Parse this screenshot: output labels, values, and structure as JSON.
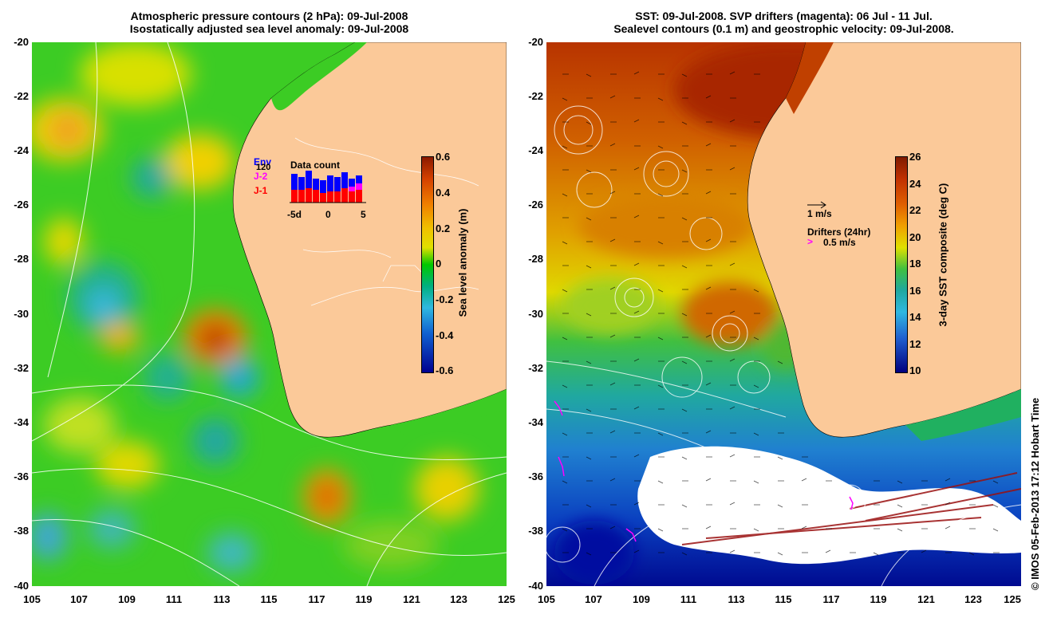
{
  "left": {
    "title_line1": "Atmospheric pressure contours (2 hPa): 09-Jul-2008",
    "title_line2": "Isostatically adjusted sea level anomaly: 09-Jul-2008",
    "colorbar": {
      "label": "Sea level anomaly (m)",
      "ticks": [
        "0.6",
        "0.4",
        "0.2",
        "0",
        "-0.2",
        "-0.4",
        "-0.6"
      ]
    },
    "inset": {
      "title": "Data count",
      "legend_env": "Env",
      "legend_j2": "J-2",
      "legend_j1": "J-1",
      "count": "120",
      "xticks": [
        "-5d",
        "0",
        "5"
      ]
    }
  },
  "right": {
    "title_line1": "SST: 09-Jul-2008. SVP drifters (magenta): 06 Jul - 11 Jul.",
    "title_line2": "Sealevel contours (0.1 m) and geostrophic velocity: 09-Jul-2008.",
    "colorbar": {
      "label": "3-day SST composite (deg C)",
      "ticks": [
        "26",
        "24",
        "22",
        "20",
        "18",
        "16",
        "14",
        "12",
        "10"
      ]
    },
    "velocity_scale": "1 m/s",
    "drifters_label": "Drifters (24hr)",
    "drifters_scale": "0.5 m/s"
  },
  "axes": {
    "y_ticks": [
      "-20",
      "-22",
      "-24",
      "-26",
      "-28",
      "-30",
      "-32",
      "-34",
      "-36",
      "-38",
      "-40"
    ],
    "x_ticks": [
      "105",
      "107",
      "109",
      "111",
      "113",
      "115",
      "117",
      "119",
      "121",
      "123",
      "125"
    ]
  },
  "credit": "© IMOS 05-Feb-2013 17:12 Hobart Time",
  "colors": {
    "land": "#fbc999",
    "sla_high": "#8b1a00",
    "sla_zero": "#00c800",
    "sla_low": "#00007f",
    "sst_high": "#7f1a00",
    "sst_low": "#00007f"
  }
}
